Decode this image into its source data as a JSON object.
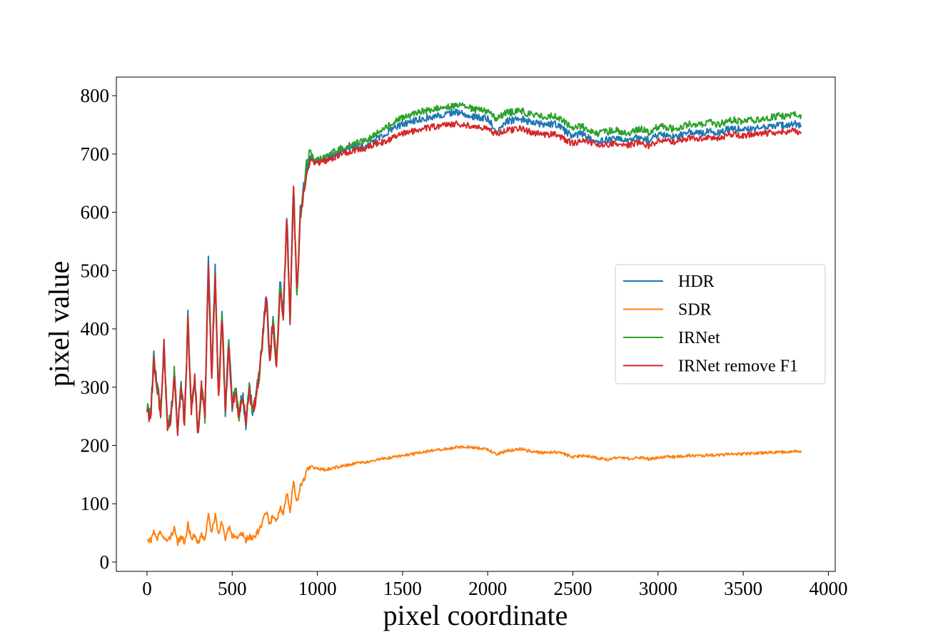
{
  "chart_data": {
    "type": "line",
    "title": "",
    "xlabel": "pixel coordinate",
    "ylabel": "pixel value",
    "xlim": [
      -180,
      4040
    ],
    "ylim": [
      -16,
      832
    ],
    "xticks": [
      0,
      500,
      1000,
      1500,
      2000,
      2500,
      3000,
      3500,
      4000
    ],
    "yticks": [
      0,
      100,
      200,
      300,
      400,
      500,
      600,
      700,
      800
    ],
    "grid": false,
    "legend_position": "center-right",
    "series": [
      {
        "name": "HDR",
        "color": "#1f77b4",
        "noise": 12,
        "x": [
          0,
          20,
          40,
          60,
          80,
          100,
          120,
          140,
          160,
          180,
          200,
          220,
          240,
          260,
          280,
          300,
          320,
          340,
          360,
          380,
          400,
          420,
          440,
          460,
          480,
          500,
          520,
          540,
          560,
          580,
          600,
          620,
          640,
          660,
          680,
          700,
          720,
          740,
          760,
          780,
          800,
          820,
          840,
          860,
          880,
          900,
          920,
          940,
          960,
          1000,
          1050,
          1100,
          1150,
          1200,
          1250,
          1300,
          1350,
          1400,
          1450,
          1500,
          1550,
          1600,
          1650,
          1700,
          1750,
          1800,
          1850,
          1900,
          1950,
          2000,
          2050,
          2100,
          2150,
          2200,
          2250,
          2300,
          2350,
          2400,
          2450,
          2500,
          2550,
          2600,
          2650,
          2700,
          2750,
          2800,
          2850,
          2900,
          2950,
          3000,
          3050,
          3100,
          3150,
          3200,
          3250,
          3300,
          3350,
          3400,
          3450,
          3500,
          3550,
          3600,
          3650,
          3700,
          3750,
          3800,
          3840
        ],
        "y": [
          270,
          245,
          350,
          300,
          260,
          375,
          230,
          250,
          330,
          215,
          300,
          240,
          420,
          260,
          330,
          210,
          300,
          250,
          520,
          320,
          500,
          280,
          430,
          260,
          380,
          270,
          300,
          250,
          290,
          240,
          300,
          260,
          280,
          330,
          390,
          460,
          350,
          420,
          330,
          480,
          430,
          600,
          420,
          650,
          460,
          600,
          640,
          680,
          695,
          685,
          690,
          700,
          705,
          710,
          712,
          715,
          725,
          735,
          745,
          750,
          755,
          760,
          762,
          765,
          768,
          772,
          770,
          765,
          762,
          760,
          740,
          755,
          758,
          760,
          755,
          752,
          750,
          752,
          740,
          730,
          735,
          728,
          720,
          725,
          728,
          722,
          725,
          730,
          722,
          735,
          732,
          728,
          735,
          738,
          735,
          740,
          735,
          742,
          745,
          740,
          742,
          745,
          748,
          750,
          748,
          752,
          748
        ]
      },
      {
        "name": "SDR",
        "color": "#ff7f0e",
        "noise": 5,
        "x": [
          0,
          20,
          40,
          60,
          80,
          100,
          120,
          140,
          160,
          180,
          200,
          220,
          240,
          260,
          280,
          300,
          320,
          340,
          360,
          380,
          400,
          420,
          440,
          460,
          480,
          500,
          520,
          540,
          560,
          580,
          600,
          620,
          640,
          660,
          680,
          700,
          720,
          740,
          760,
          780,
          800,
          820,
          840,
          860,
          880,
          900,
          920,
          940,
          960,
          1000,
          1050,
          1100,
          1150,
          1200,
          1250,
          1300,
          1350,
          1400,
          1450,
          1500,
          1550,
          1600,
          1650,
          1700,
          1750,
          1800,
          1850,
          1900,
          1950,
          2000,
          2050,
          2100,
          2150,
          2200,
          2250,
          2300,
          2350,
          2400,
          2450,
          2500,
          2550,
          2600,
          2650,
          2700,
          2750,
          2800,
          2850,
          2900,
          2950,
          3000,
          3050,
          3100,
          3150,
          3200,
          3250,
          3300,
          3350,
          3400,
          3450,
          3500,
          3550,
          3600,
          3650,
          3700,
          3750,
          3800,
          3840
        ],
        "y": [
          42,
          35,
          50,
          38,
          55,
          40,
          35,
          45,
          60,
          32,
          42,
          35,
          65,
          40,
          50,
          33,
          45,
          38,
          85,
          50,
          80,
          45,
          70,
          40,
          60,
          45,
          48,
          42,
          50,
          38,
          45,
          40,
          48,
          55,
          70,
          85,
          65,
          80,
          70,
          95,
          85,
          120,
          90,
          140,
          100,
          130,
          140,
          160,
          165,
          160,
          158,
          162,
          165,
          168,
          170,
          172,
          175,
          178,
          180,
          182,
          185,
          188,
          190,
          192,
          194,
          196,
          198,
          197,
          195,
          193,
          185,
          190,
          192,
          194,
          190,
          188,
          187,
          189,
          185,
          180,
          182,
          181,
          178,
          176,
          179,
          178,
          177,
          180,
          176,
          180,
          181,
          180,
          182,
          183,
          182,
          184,
          183,
          185,
          186,
          185,
          186,
          187,
          188,
          189,
          188,
          190,
          189
        ]
      },
      {
        "name": "IRNet",
        "color": "#2ca02c",
        "noise": 12,
        "x": [
          0,
          20,
          40,
          60,
          80,
          100,
          120,
          140,
          160,
          180,
          200,
          220,
          240,
          260,
          280,
          300,
          320,
          340,
          360,
          380,
          400,
          420,
          440,
          460,
          480,
          500,
          520,
          540,
          560,
          580,
          600,
          620,
          640,
          660,
          680,
          700,
          720,
          740,
          760,
          780,
          800,
          820,
          840,
          860,
          880,
          900,
          920,
          940,
          960,
          1000,
          1050,
          1100,
          1150,
          1200,
          1250,
          1300,
          1350,
          1400,
          1450,
          1500,
          1550,
          1600,
          1650,
          1700,
          1750,
          1800,
          1850,
          1900,
          1950,
          2000,
          2050,
          2100,
          2150,
          2200,
          2250,
          2300,
          2350,
          2400,
          2450,
          2500,
          2550,
          2600,
          2650,
          2700,
          2750,
          2800,
          2850,
          2900,
          2950,
          3000,
          3050,
          3100,
          3150,
          3200,
          3250,
          3300,
          3350,
          3400,
          3450,
          3500,
          3550,
          3600,
          3650,
          3700,
          3750,
          3800,
          3840
        ],
        "y": [
          265,
          240,
          345,
          300,
          255,
          370,
          235,
          250,
          325,
          220,
          300,
          240,
          415,
          260,
          325,
          215,
          300,
          250,
          505,
          320,
          490,
          280,
          425,
          260,
          375,
          270,
          295,
          250,
          285,
          245,
          295,
          260,
          280,
          325,
          385,
          455,
          345,
          415,
          330,
          470,
          425,
          590,
          420,
          640,
          460,
          595,
          635,
          690,
          702,
          690,
          695,
          705,
          710,
          715,
          720,
          725,
          735,
          745,
          755,
          762,
          768,
          772,
          775,
          778,
          780,
          783,
          782,
          778,
          775,
          772,
          760,
          770,
          772,
          774,
          768,
          766,
          764,
          766,
          755,
          745,
          748,
          740,
          735,
          738,
          742,
          736,
          738,
          744,
          735,
          748,
          746,
          742,
          748,
          752,
          750,
          755,
          750,
          756,
          758,
          755,
          758,
          760,
          762,
          765,
          764,
          768,
          765
        ]
      },
      {
        "name": "IRNet remove F1",
        "color": "#d62728",
        "noise": 11,
        "x": [
          0,
          20,
          40,
          60,
          80,
          100,
          120,
          140,
          160,
          180,
          200,
          220,
          240,
          260,
          280,
          300,
          320,
          340,
          360,
          380,
          400,
          420,
          440,
          460,
          480,
          500,
          520,
          540,
          560,
          580,
          600,
          620,
          640,
          660,
          680,
          700,
          720,
          740,
          760,
          780,
          800,
          820,
          840,
          860,
          880,
          900,
          920,
          940,
          960,
          1000,
          1050,
          1100,
          1150,
          1200,
          1250,
          1300,
          1350,
          1400,
          1450,
          1500,
          1550,
          1600,
          1650,
          1700,
          1750,
          1800,
          1850,
          1900,
          1950,
          2000,
          2050,
          2100,
          2150,
          2200,
          2250,
          2300,
          2350,
          2400,
          2450,
          2500,
          2550,
          2600,
          2650,
          2700,
          2750,
          2800,
          2850,
          2900,
          2950,
          3000,
          3050,
          3100,
          3150,
          3200,
          3250,
          3300,
          3350,
          3400,
          3450,
          3500,
          3550,
          3600,
          3650,
          3700,
          3750,
          3800,
          3840
        ],
        "y": [
          265,
          240,
          345,
          300,
          255,
          370,
          230,
          250,
          325,
          220,
          300,
          240,
          415,
          260,
          325,
          215,
          300,
          250,
          505,
          320,
          490,
          280,
          425,
          260,
          375,
          270,
          295,
          250,
          285,
          245,
          295,
          260,
          280,
          325,
          385,
          455,
          345,
          415,
          330,
          470,
          425,
          590,
          420,
          640,
          460,
          595,
          635,
          680,
          690,
          685,
          688,
          695,
          700,
          705,
          708,
          712,
          718,
          722,
          728,
          735,
          738,
          742,
          745,
          748,
          750,
          752,
          750,
          748,
          745,
          742,
          735,
          740,
          742,
          744,
          738,
          735,
          733,
          735,
          725,
          718,
          722,
          720,
          715,
          717,
          719,
          715,
          717,
          722,
          712,
          725,
          724,
          720,
          725,
          728,
          726,
          730,
          726,
          732,
          734,
          730,
          733,
          735,
          736,
          738,
          737,
          740,
          737
        ]
      }
    ]
  }
}
